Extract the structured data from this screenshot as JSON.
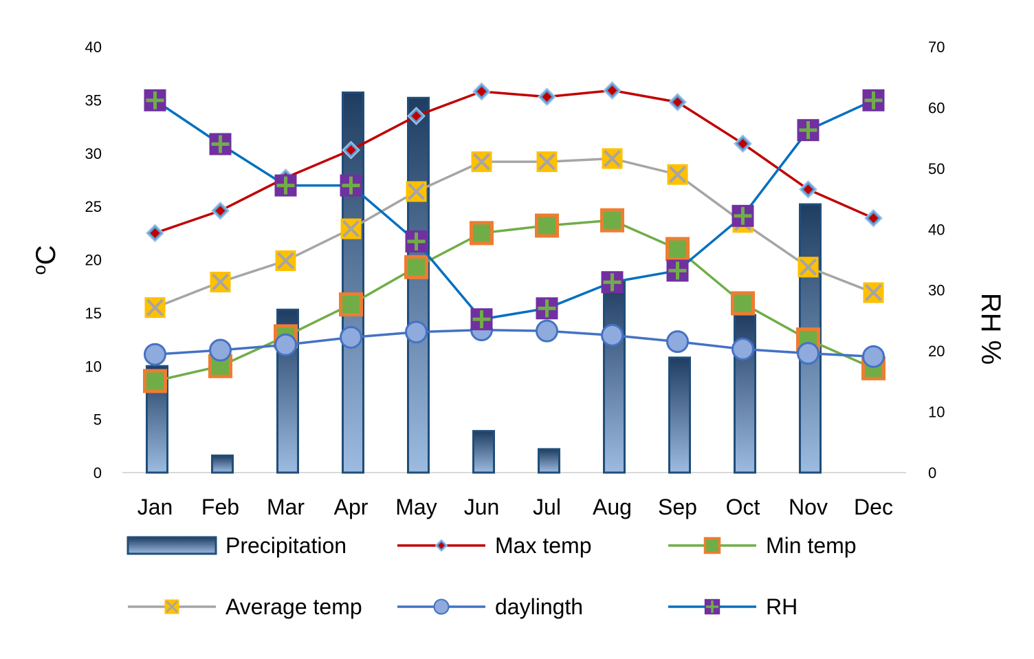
{
  "chart_data": {
    "type": "bar+line",
    "title": "",
    "categories": [
      "Jan",
      "Feb",
      "Mar",
      "Apr",
      "May",
      "Jun",
      "Jul",
      "Aug",
      "Sep",
      "Oct",
      "Nov",
      "Dec"
    ],
    "y_left": {
      "label_symbol": "o",
      "label_unit": "C",
      "ylim": [
        0,
        40
      ],
      "ticks": [
        0,
        5,
        10,
        15,
        20,
        25,
        30,
        35,
        40
      ]
    },
    "y_right": {
      "label": "RH %",
      "ylim": [
        0,
        70
      ],
      "ticks": [
        0,
        10,
        20,
        30,
        40,
        50,
        60,
        70
      ]
    },
    "series": [
      {
        "name": "Precipitation",
        "type": "bar",
        "axis": "left",
        "color": "#1f4e79",
        "values": [
          10,
          1.6,
          15.3,
          35.7,
          35.2,
          3.9,
          2.2,
          18,
          10.8,
          14.8,
          25.2,
          0
        ]
      },
      {
        "name": "Max temp",
        "type": "line",
        "axis": "left",
        "color": "#c00000",
        "marker": "diamond",
        "marker_fill": "#c00000",
        "marker_stroke": "#5b9bd5",
        "values": [
          22.5,
          24.6,
          27.7,
          30.3,
          33.5,
          35.8,
          35.3,
          35.9,
          34.8,
          30.9,
          26.6,
          23.9
        ]
      },
      {
        "name": "Min temp",
        "type": "line",
        "axis": "left",
        "color": "#70ad47",
        "marker": "square",
        "marker_fill": "#70ad47",
        "marker_stroke": "#ed7d31",
        "values": [
          8.6,
          10.0,
          12.8,
          15.8,
          19.3,
          22.5,
          23.2,
          23.7,
          21.0,
          15.9,
          12.5,
          9.8
        ]
      },
      {
        "name": "Average temp",
        "type": "line",
        "axis": "left",
        "color": "#a5a5a5",
        "marker": "x-square",
        "marker_fill": "#ffc000",
        "marker_stroke": "#a5a5a5",
        "values": [
          15.5,
          17.9,
          19.9,
          22.9,
          26.4,
          29.2,
          29.2,
          29.5,
          28.0,
          23.5,
          19.3,
          16.9
        ]
      },
      {
        "name": "daylingth",
        "type": "line",
        "axis": "left",
        "color": "#4472c4",
        "marker": "circle",
        "marker_fill": "#8faadc",
        "marker_stroke": "#4472c4",
        "values": [
          11.1,
          11.5,
          12.0,
          12.7,
          13.2,
          13.4,
          13.3,
          12.9,
          12.3,
          11.6,
          11.2,
          10.9
        ]
      },
      {
        "name": "RH",
        "type": "line",
        "axis": "right",
        "color": "#0070c0",
        "marker": "plus-square",
        "marker_fill": "#7030a0",
        "marker_stroke": "#70ad47",
        "values": [
          61.2,
          54.0,
          47.2,
          47.2,
          38.0,
          25.2,
          27.0,
          31.3,
          33.2,
          42.2,
          56.3,
          61.2
        ]
      }
    ],
    "legend_position": "bottom"
  }
}
